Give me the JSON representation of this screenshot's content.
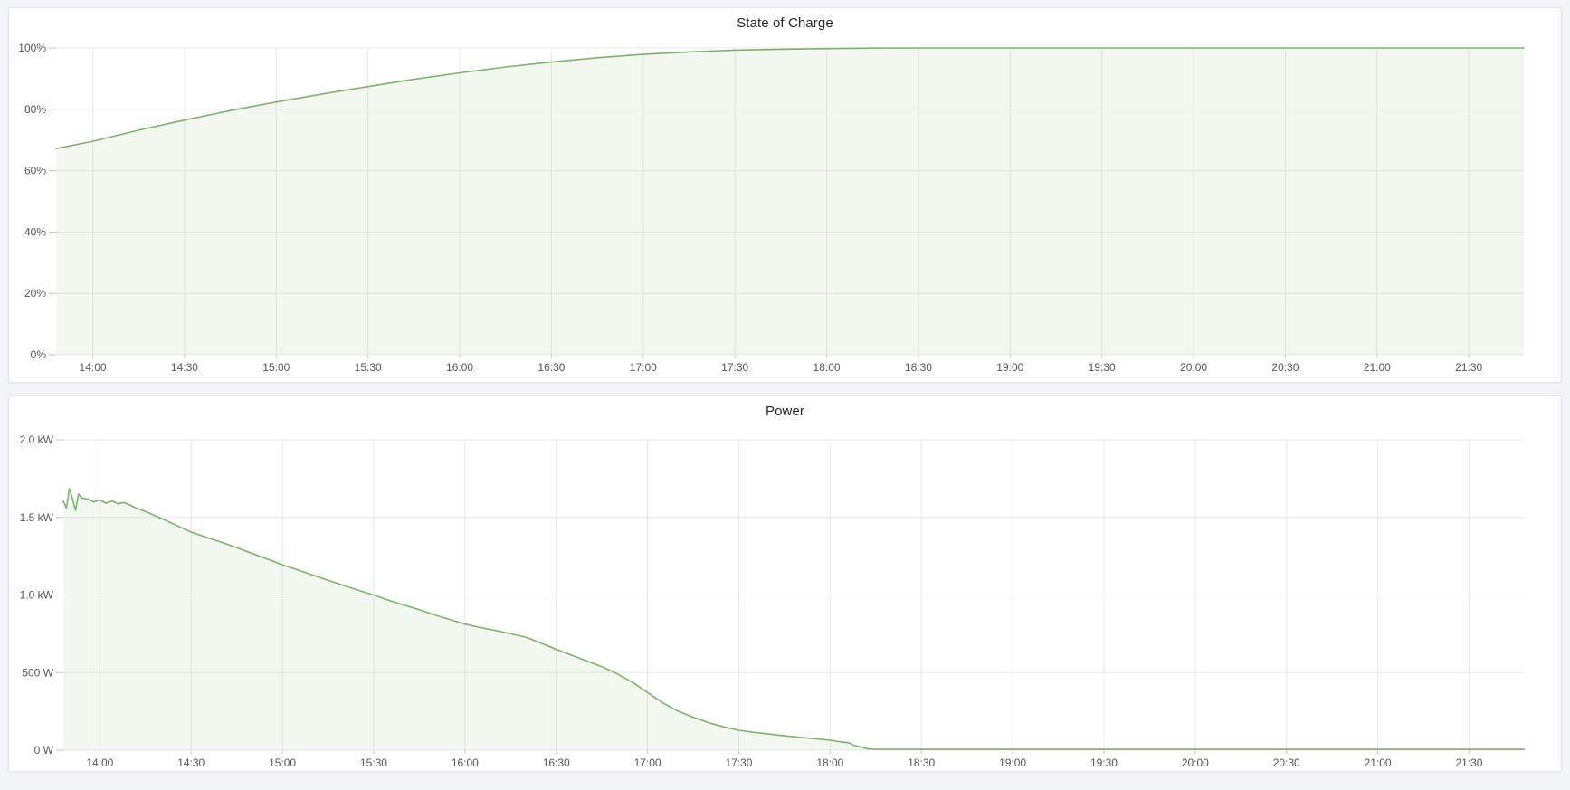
{
  "chart_data": [
    {
      "type": "area",
      "title": "State of Charge",
      "x_domain": [
        "13:48",
        "21:48"
      ],
      "x_tick_labels": [
        "14:00",
        "14:30",
        "15:00",
        "15:30",
        "16:00",
        "16:30",
        "17:00",
        "17:30",
        "18:00",
        "18:30",
        "19:00",
        "19:30",
        "20:00",
        "20:30",
        "21:00",
        "21:30"
      ],
      "y_domain": [
        0,
        100
      ],
      "y_ticks": [
        {
          "v": 0,
          "label": "0%"
        },
        {
          "v": 20,
          "label": "20%"
        },
        {
          "v": 40,
          "label": "40%"
        },
        {
          "v": 60,
          "label": "60%"
        },
        {
          "v": 80,
          "label": "80%"
        },
        {
          "v": 100,
          "label": "100%"
        }
      ],
      "grid": true,
      "legend": "none",
      "series": [
        {
          "name": "State of Charge",
          "color": "#7eb26d",
          "fill_opacity": 0.1,
          "points": [
            [
              "13:48",
              67.2
            ],
            [
              "14:00",
              69.6
            ],
            [
              "14:15",
              73.2
            ],
            [
              "14:30",
              76.5
            ],
            [
              "14:45",
              79.6
            ],
            [
              "15:00",
              82.4
            ],
            [
              "15:15",
              85.0
            ],
            [
              "15:30",
              87.4
            ],
            [
              "15:45",
              89.8
            ],
            [
              "16:00",
              91.9
            ],
            [
              "16:15",
              93.8
            ],
            [
              "16:30",
              95.4
            ],
            [
              "16:45",
              96.8
            ],
            [
              "17:00",
              97.9
            ],
            [
              "17:15",
              98.7
            ],
            [
              "17:30",
              99.3
            ],
            [
              "17:45",
              99.6
            ],
            [
              "18:00",
              99.8
            ],
            [
              "18:15",
              99.95
            ],
            [
              "18:30",
              100
            ],
            [
              "19:00",
              100
            ],
            [
              "20:00",
              100
            ],
            [
              "21:00",
              100
            ],
            [
              "21:48",
              100
            ]
          ]
        }
      ]
    },
    {
      "type": "area",
      "title": "Power",
      "x_domain": [
        "13:48",
        "21:48"
      ],
      "x_tick_labels": [
        "14:00",
        "14:30",
        "15:00",
        "15:30",
        "16:00",
        "16:30",
        "17:00",
        "17:30",
        "18:00",
        "18:30",
        "19:00",
        "19:30",
        "20:00",
        "20:30",
        "21:00",
        "21:30"
      ],
      "y_domain": [
        0,
        2000
      ],
      "y_ticks": [
        {
          "v": 0,
          "label": "0 W"
        },
        {
          "v": 500,
          "label": "500 W"
        },
        {
          "v": 1000,
          "label": "1.0 kW"
        },
        {
          "v": 1500,
          "label": "1.5 kW"
        },
        {
          "v": 2000,
          "label": "2.0 kW"
        }
      ],
      "grid": true,
      "legend": "none",
      "series": [
        {
          "name": "Power",
          "color": "#7eb26d",
          "fill_opacity": 0.1,
          "points": [
            [
              "13:48",
              1605
            ],
            [
              "13:49",
              1560
            ],
            [
              "13:50",
              1685
            ],
            [
              "13:51",
              1620
            ],
            [
              "13:52",
              1545
            ],
            [
              "13:53",
              1650
            ],
            [
              "13:54",
              1625
            ],
            [
              "13:56",
              1618
            ],
            [
              "13:58",
              1600
            ],
            [
              "14:00",
              1612
            ],
            [
              "14:02",
              1592
            ],
            [
              "14:04",
              1606
            ],
            [
              "14:06",
              1588
            ],
            [
              "14:08",
              1596
            ],
            [
              "14:12",
              1560
            ],
            [
              "14:16",
              1530
            ],
            [
              "14:20",
              1495
            ],
            [
              "14:25",
              1450
            ],
            [
              "14:30",
              1405
            ],
            [
              "14:35",
              1372
            ],
            [
              "14:40",
              1340
            ],
            [
              "14:45",
              1305
            ],
            [
              "14:50",
              1268
            ],
            [
              "14:55",
              1232
            ],
            [
              "15:00",
              1195
            ],
            [
              "15:05",
              1162
            ],
            [
              "15:10",
              1128
            ],
            [
              "15:15",
              1095
            ],
            [
              "15:20",
              1062
            ],
            [
              "15:25",
              1030
            ],
            [
              "15:30",
              1000
            ],
            [
              "15:35",
              965
            ],
            [
              "15:40",
              935
            ],
            [
              "15:45",
              905
            ],
            [
              "15:50",
              872
            ],
            [
              "15:55",
              842
            ],
            [
              "16:00",
              812
            ],
            [
              "16:05",
              790
            ],
            [
              "16:10",
              772
            ],
            [
              "16:15",
              750
            ],
            [
              "16:20",
              728
            ],
            [
              "16:25",
              690
            ],
            [
              "16:30",
              650
            ],
            [
              "16:35",
              612
            ],
            [
              "16:40",
              575
            ],
            [
              "16:45",
              538
            ],
            [
              "16:50",
              492
            ],
            [
              "16:55",
              438
            ],
            [
              "17:00",
              372
            ],
            [
              "17:05",
              305
            ],
            [
              "17:10",
              252
            ],
            [
              "17:15",
              212
            ],
            [
              "17:20",
              178
            ],
            [
              "17:25",
              150
            ],
            [
              "17:30",
              128
            ],
            [
              "17:35",
              115
            ],
            [
              "17:40",
              104
            ],
            [
              "17:45",
              93
            ],
            [
              "17:50",
              83
            ],
            [
              "17:55",
              74
            ],
            [
              "18:00",
              64
            ],
            [
              "18:03",
              55
            ],
            [
              "18:06",
              48
            ],
            [
              "18:08",
              30
            ],
            [
              "18:10",
              22
            ],
            [
              "18:12",
              10
            ],
            [
              "18:15",
              6
            ],
            [
              "18:30",
              5
            ],
            [
              "19:00",
              5
            ],
            [
              "19:30",
              5
            ],
            [
              "20:00",
              5
            ],
            [
              "20:30",
              5
            ],
            [
              "21:00",
              5
            ],
            [
              "21:30",
              5
            ],
            [
              "21:48",
              5
            ]
          ]
        }
      ]
    }
  ]
}
